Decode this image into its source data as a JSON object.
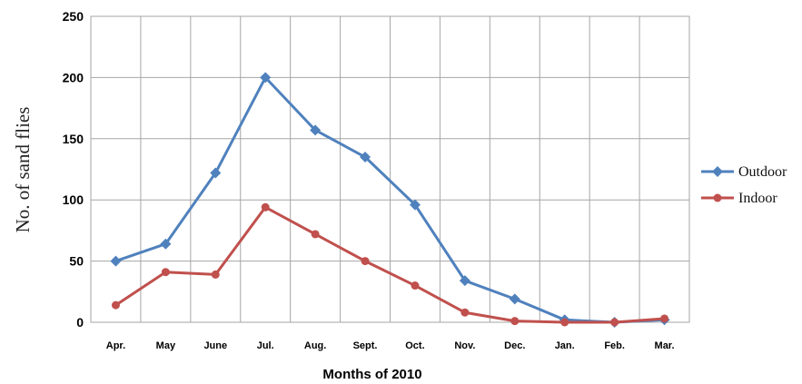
{
  "chart_data": {
    "type": "line",
    "categories": [
      "Apr.",
      "May",
      "June",
      "Jul.",
      "Aug.",
      "Sept.",
      "Oct.",
      "Nov.",
      "Dec.",
      "Jan.",
      "Feb.",
      "Mar."
    ],
    "series": [
      {
        "name": "Outdoor",
        "values": [
          50,
          64,
          122,
          200,
          157,
          135,
          96,
          34,
          19,
          2,
          0,
          2
        ],
        "color": "#4f81bd",
        "marker": "diamond"
      },
      {
        "name": "Indoor",
        "values": [
          14,
          41,
          39,
          94,
          72,
          50,
          30,
          8,
          1,
          0,
          0,
          3
        ],
        "color": "#c0504d",
        "marker": "circle"
      }
    ],
    "xlabel": "Months of 2010",
    "ylabel": "No. of sand flies",
    "ylim": [
      0,
      250
    ],
    "yticks": [
      0,
      50,
      100,
      150,
      200,
      250
    ],
    "grid": true,
    "legend": "right"
  }
}
